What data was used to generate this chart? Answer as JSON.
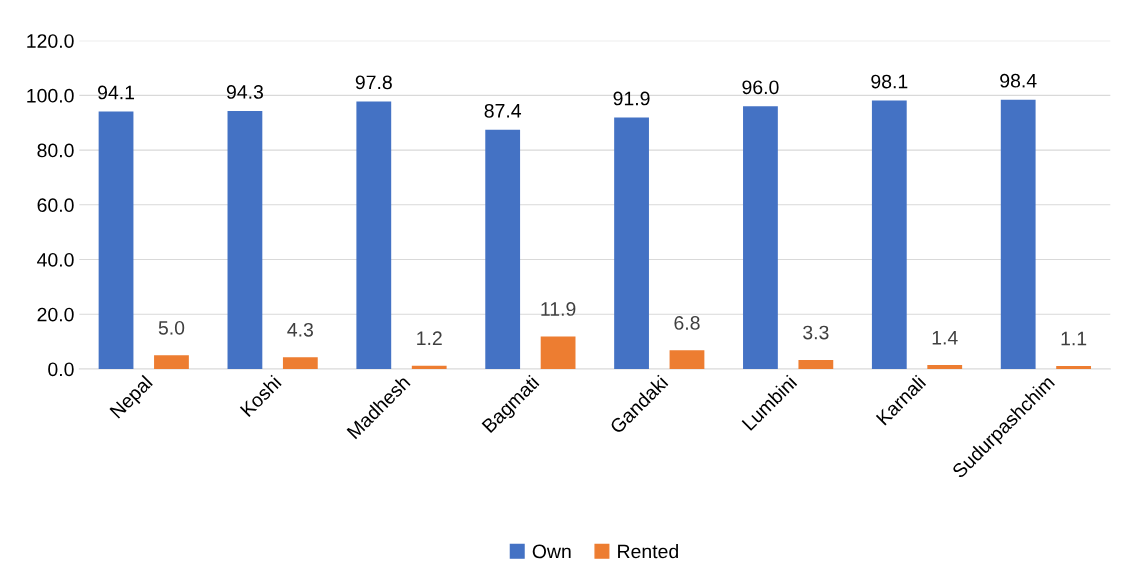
{
  "chart_data": {
    "type": "bar",
    "categories": [
      "Nepal",
      "Koshi",
      "Madhesh",
      "Bagmati",
      "Gandaki",
      "Lumbini",
      "Karnali",
      "Sudurpashchim"
    ],
    "series": [
      {
        "name": "Own",
        "color": "#4472c4",
        "values": [
          94.1,
          94.3,
          97.8,
          87.4,
          91.9,
          96.0,
          98.1,
          98.4
        ],
        "value_labels": [
          "94.1",
          "94.3",
          "97.8",
          "87.4",
          "91.9",
          "96.0",
          "98.1",
          "98.4"
        ]
      },
      {
        "name": "Rented",
        "color": "#ed7d31",
        "values": [
          5.0,
          4.3,
          1.2,
          11.9,
          6.8,
          3.3,
          1.4,
          1.1
        ],
        "value_labels": [
          "5.0",
          "4.3",
          "1.2",
          "11.9",
          "6.8",
          "3.3",
          "1.4",
          "1.1"
        ]
      }
    ],
    "ylim": [
      0,
      120
    ],
    "yticks": [
      {
        "value": 0,
        "label": "0.0"
      },
      {
        "value": 20,
        "label": "20.0"
      },
      {
        "value": 40,
        "label": "40.0"
      },
      {
        "value": 60,
        "label": "60.0"
      },
      {
        "value": 80,
        "label": "80.0"
      },
      {
        "value": 100,
        "label": "100.0"
      },
      {
        "value": 120,
        "label": "120.0"
      }
    ],
    "grid": "y",
    "legend": "bottom"
  }
}
